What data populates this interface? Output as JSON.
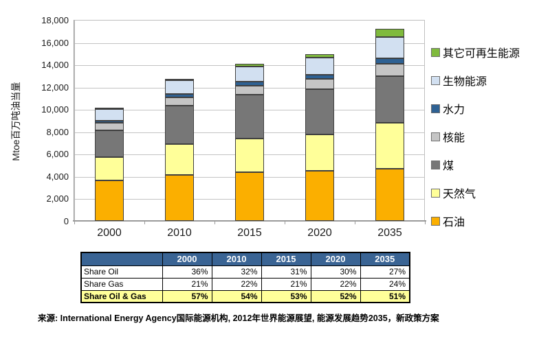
{
  "chart_data": {
    "type": "bar",
    "stacked": true,
    "title": "",
    "xlabel": "",
    "ylabel": "Mtoe百万吨油当量",
    "ylim": [
      0,
      18000
    ],
    "ytick_step": 2000,
    "yticks": [
      "0",
      "2,000",
      "4,000",
      "6,000",
      "8,000",
      "10,000",
      "12,000",
      "14,000",
      "16,000",
      "18,000"
    ],
    "grid": true,
    "legend_position": "right",
    "legend_order": "reverse-of-stack (top item = top of bar)",
    "categories": [
      "2000",
      "2010",
      "2015",
      "2020",
      "2035"
    ],
    "series": [
      {
        "name": "石油",
        "color": "#FBAF00",
        "values": [
          3649,
          4113,
          4352,
          4457,
          4656
        ]
      },
      {
        "name": "天然气",
        "color": "#FFFF99",
        "values": [
          2085,
          2740,
          2993,
          3266,
          4106
        ]
      },
      {
        "name": "煤",
        "color": "#777777",
        "values": [
          2357,
          3474,
          3945,
          4082,
          4218
        ]
      },
      {
        "name": "核能",
        "color": "#C5C5C5",
        "values": [
          676,
          719,
          818,
          898,
          1119
        ]
      },
      {
        "name": "水力",
        "color": "#2E6193",
        "values": [
          225,
          295,
          338,
          388,
          488
        ]
      },
      {
        "name": "生物能源",
        "color": "#D2E0F1",
        "values": [
          1026,
          1277,
          1408,
          1532,
          1881
        ]
      },
      {
        "name": "其它可再生能源",
        "color": "#7FBA3D",
        "values": [
          55,
          112,
          213,
          299,
          729
        ]
      }
    ],
    "totals": [
      10073,
      12730,
      14067,
      14922,
      17197
    ]
  },
  "table": {
    "header_bg": "#3A6494",
    "highlight_bg": "#FFFF99",
    "header": [
      "",
      "2000",
      "2010",
      "2015",
      "2020",
      "2035"
    ],
    "rows": [
      {
        "label": "Share Oil",
        "values": [
          "36%",
          "32%",
          "31%",
          "30%",
          "27%"
        ],
        "highlight": false
      },
      {
        "label": "Share Gas",
        "values": [
          "21%",
          "22%",
          "21%",
          "22%",
          "24%"
        ],
        "highlight": false
      },
      {
        "label": "Share Oil & Gas",
        "values": [
          "57%",
          "54%",
          "53%",
          "52%",
          "51%"
        ],
        "highlight": true
      }
    ]
  },
  "source_note": "来源: International Energy Agency国际能源机构, 2012年世界能源展望, 能源发展趋势2035，新政策方案"
}
